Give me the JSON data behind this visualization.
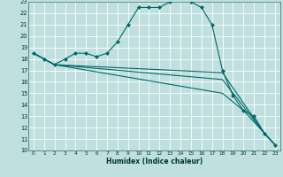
{
  "title": "",
  "xlabel": "Humidex (Indice chaleur)",
  "ylabel": "",
  "bg_color": "#c0e0e0",
  "grid_color": "#ffffff",
  "line_color": "#006868",
  "xlim": [
    -0.5,
    23.5
  ],
  "ylim": [
    10,
    23
  ],
  "yticks": [
    10,
    11,
    12,
    13,
    14,
    15,
    16,
    17,
    18,
    19,
    20,
    21,
    22,
    23
  ],
  "xticks": [
    0,
    1,
    2,
    3,
    4,
    5,
    6,
    7,
    8,
    9,
    10,
    11,
    12,
    13,
    14,
    15,
    16,
    17,
    18,
    19,
    20,
    21,
    22,
    23
  ],
  "series": [
    {
      "x": [
        0,
        1,
        2,
        3,
        4,
        5,
        6,
        7,
        8,
        9,
        10,
        11,
        12,
        13,
        14,
        15,
        16,
        17,
        18,
        19,
        20,
        21,
        22,
        23
      ],
      "y": [
        18.5,
        18.0,
        17.5,
        18.0,
        18.5,
        18.5,
        18.2,
        18.5,
        19.5,
        21.0,
        22.5,
        22.5,
        22.5,
        23.0,
        23.5,
        23.0,
        22.5,
        21.0,
        17.0,
        14.8,
        13.5,
        13.0,
        11.5,
        10.5
      ],
      "marker": "D",
      "markersize": 2.0
    },
    {
      "x": [
        0,
        2,
        18,
        22,
        23
      ],
      "y": [
        18.5,
        17.5,
        16.8,
        11.5,
        10.5
      ],
      "marker": null
    },
    {
      "x": [
        0,
        2,
        18,
        22,
        23
      ],
      "y": [
        18.5,
        17.5,
        16.2,
        11.5,
        10.5
      ],
      "marker": null
    },
    {
      "x": [
        0,
        2,
        18,
        20,
        22,
        23
      ],
      "y": [
        18.5,
        17.5,
        15.0,
        13.5,
        11.5,
        10.5
      ],
      "marker": null
    }
  ]
}
